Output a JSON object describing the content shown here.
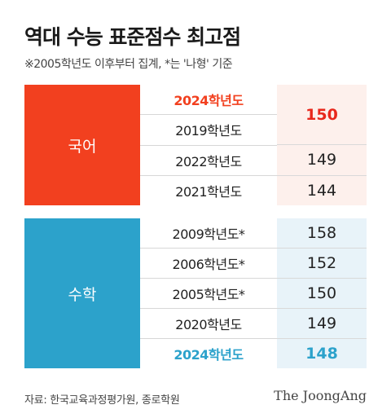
{
  "title": "역대 수능 표준점수 최고점",
  "note": "※2005학년도 이후부터 집계, *는 '나형' 기준",
  "korean": {
    "subject": "국어",
    "years": [
      "2024학년도",
      "2019학년도",
      "2022학년도",
      "2021학년도"
    ],
    "scores": [
      "150",
      "149",
      "144"
    ]
  },
  "math": {
    "subject": "수학",
    "years": [
      "2009학년도*",
      "2006학년도*",
      "2005학년도*",
      "2020학년도",
      "2024학년도"
    ],
    "scores": [
      "158",
      "152",
      "150",
      "149",
      "148"
    ]
  },
  "source": "자료: 한국교육과정평가원, 종로학원",
  "logo": "The JoongAng",
  "colors": {
    "korean_accent": "#f2401f",
    "math_accent": "#2ca2cb",
    "korean_score_bg": "#fdf0ec",
    "math_score_bg": "#e8f3f9"
  }
}
